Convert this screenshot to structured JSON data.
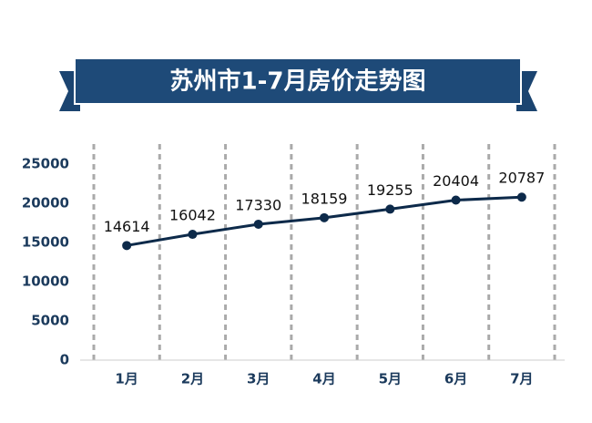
{
  "chart_data": {
    "type": "line",
    "title": "苏州市1-7月房价走势图",
    "categories": [
      "1月",
      "2月",
      "3月",
      "4月",
      "5月",
      "6月",
      "7月"
    ],
    "series": [
      {
        "name": "房价",
        "color": "#0d2a4a",
        "values": [
          14614,
          16042,
          17330,
          18159,
          19255,
          20404,
          20787
        ]
      }
    ],
    "ylim": [
      0,
      25000
    ],
    "yticks": [
      0,
      5000,
      10000,
      15000,
      20000,
      25000
    ],
    "grid": true
  }
}
